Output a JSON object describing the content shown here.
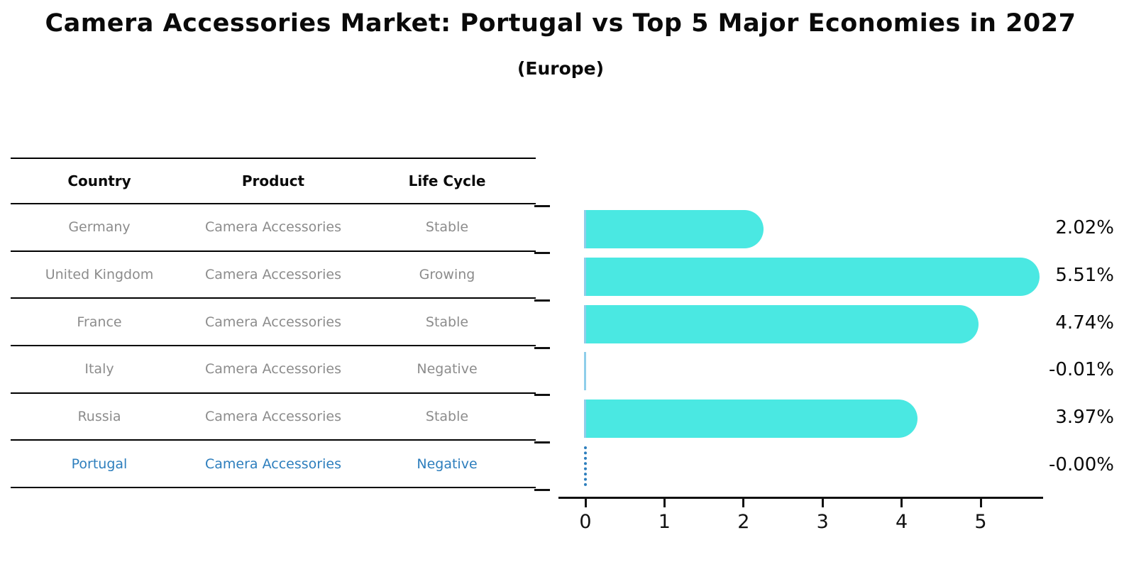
{
  "title": "Camera Accessories Market: Portugal vs Top 5 Major Economies in 2027",
  "subtitle": "(Europe)",
  "table": {
    "headers": [
      "Country",
      "Product",
      "Life Cycle"
    ],
    "rows": [
      {
        "country": "Germany",
        "product": "Camera Accessories",
        "life_cycle": "Stable",
        "highlight": false
      },
      {
        "country": "United Kingdom",
        "product": "Camera Accessories",
        "life_cycle": "Growing",
        "highlight": false
      },
      {
        "country": "France",
        "product": "Camera Accessories",
        "life_cycle": "Stable",
        "highlight": false
      },
      {
        "country": "Italy",
        "product": "Camera Accessories",
        "life_cycle": "Negative",
        "highlight": false
      },
      {
        "country": "Russia",
        "product": "Camera Accessories",
        "life_cycle": "Stable",
        "highlight": false
      },
      {
        "country": "Portugal",
        "product": "Camera Accessories",
        "life_cycle": "Negative",
        "highlight": true
      }
    ]
  },
  "chart_data": {
    "type": "bar",
    "orientation": "horizontal",
    "title": "Camera Accessories Market: Portugal vs Top 5 Major Economies in 2027 (Europe)",
    "categories": [
      "Germany",
      "United Kingdom",
      "France",
      "Italy",
      "Russia",
      "Portugal"
    ],
    "values": [
      2.02,
      5.51,
      4.74,
      -0.01,
      3.97,
      -0.0
    ],
    "value_labels": [
      "2.02%",
      "5.51%",
      "4.74%",
      "-0.01%",
      "3.97%",
      "-0.00%"
    ],
    "xlabel": "",
    "ylabel": "",
    "xticks": [
      "0",
      "1",
      "2",
      "3",
      "4",
      "5"
    ],
    "xlim": [
      0,
      5.8
    ],
    "grid": false,
    "legend": null,
    "bar_color": "#4ae8e2",
    "bar_edge_color": "#8fceea",
    "highlight_color": "#2d7ebd",
    "axis_color": "#111111"
  }
}
